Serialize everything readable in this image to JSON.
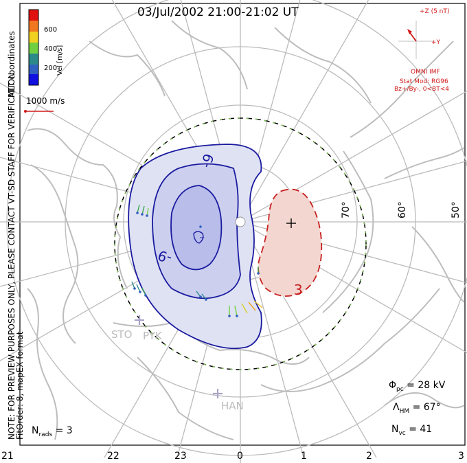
{
  "title": "03/Jul/2002 21:00-21:02 UT",
  "notice": {
    "line1": "NOTE: FOR PREVIEW PURPOSES ONLY, PLEASE CONTACT VT-SD STAFF FOR VERIFICATION.",
    "line2": "FitOrder: 8, mapEX format",
    "coords": "MLT coordinates"
  },
  "colorbar": {
    "label": "Vel [m/s]",
    "ticks": [
      "600",
      "400",
      "200"
    ],
    "colors": [
      "#e01010",
      "#f07820",
      "#f0d020",
      "#70d040",
      "#2c8a8a",
      "#3060c0",
      "#1010e0"
    ]
  },
  "velocity_scale": "1000 m/s",
  "imf": {
    "z_label": "+Z (5 nT)",
    "y_label": "+Y",
    "source": "OMNI IMF",
    "model": "Stat Mod: RG96",
    "condition": "Bz+/By-, 0<BT<4"
  },
  "contours": {
    "negative_label": "-9",
    "inner_label": "-9",
    "positive_label": "3"
  },
  "latitudes": [
    "70°",
    "60°",
    "50°"
  ],
  "mlt_hours": [
    "21",
    "22",
    "23",
    "0",
    "1",
    "2",
    "3"
  ],
  "stations": [
    "STO",
    "PYK",
    "HAN"
  ],
  "stats": {
    "phi_symbol": "Φ",
    "phi_sub": "pc",
    "phi_value": "= 28 kV",
    "lambda_symbol": "Λ",
    "lambda_sub": "HM",
    "lambda_value": "= 67°",
    "nvc_symbol": "N",
    "nvc_sub": "vc",
    "nvc_value": "= 41",
    "nrads_symbol": "N",
    "nrads_sub": "rads",
    "nrads_value": "= 3"
  },
  "colors": {
    "negative_fill": "#dfe2f2",
    "negative_core": "#b8bdea",
    "negative_line": "#1a1aa0",
    "positive_fill": "#f3d6d0",
    "positive_line": "#c82020",
    "boundary": "#000000",
    "grid": "#bbbbbb",
    "coast": "#bdbdbd"
  }
}
